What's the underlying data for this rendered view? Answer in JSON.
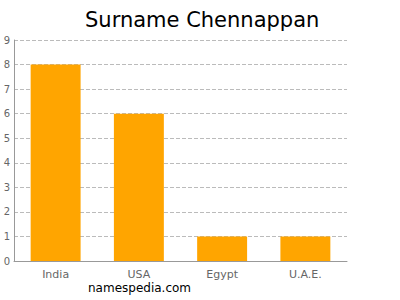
{
  "chart_data": {
    "type": "bar",
    "title": "Surname Chennappan",
    "categories": [
      "India",
      "USA",
      "Egypt",
      "U.A.E."
    ],
    "values": [
      8,
      6,
      1,
      1
    ],
    "color": "#ffa500",
    "ylim": [
      0,
      9
    ],
    "yticks": [
      0,
      1,
      2,
      3,
      4,
      5,
      6,
      7,
      8,
      9
    ],
    "grid": true,
    "annotation": "namespedia.com"
  }
}
